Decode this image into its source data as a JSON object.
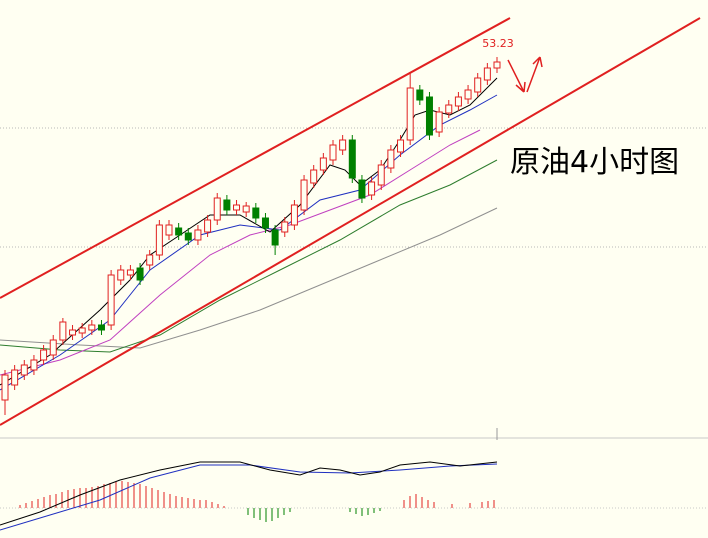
{
  "chart_data": {
    "type": "candlestick",
    "title": "原油4小时图",
    "annotation": "53.23",
    "up_color": "#e02020",
    "down_color": "#008000",
    "ylim": [
      49.45,
      53.85
    ],
    "open": [
      49.85,
      50.0,
      50.1,
      50.15,
      50.25,
      50.3,
      50.45,
      50.5,
      50.52,
      50.55,
      50.6,
      50.6,
      51.05,
      51.1,
      51.17,
      51.2,
      51.3,
      51.5,
      51.57,
      51.52,
      51.45,
      51.53,
      51.65,
      51.85,
      51.75,
      51.73,
      51.77,
      51.67,
      51.55,
      51.53,
      51.6,
      51.75,
      52.02,
      52.15,
      52.25,
      52.35,
      52.45,
      52.05,
      51.9,
      52.0,
      52.17,
      52.33,
      52.45,
      52.95,
      52.88,
      52.53,
      52.72,
      52.79,
      52.86,
      52.93,
      53.05,
      53.17
    ],
    "high": [
      50.15,
      50.2,
      50.25,
      50.3,
      50.4,
      50.5,
      50.67,
      50.6,
      50.62,
      50.65,
      50.65,
      51.15,
      51.2,
      51.2,
      51.22,
      51.35,
      51.65,
      51.65,
      51.62,
      51.57,
      51.6,
      51.7,
      51.92,
      51.9,
      51.85,
      51.83,
      51.82,
      51.72,
      51.6,
      51.68,
      51.85,
      52.1,
      52.2,
      52.32,
      52.45,
      52.5,
      52.5,
      52.1,
      52.08,
      52.25,
      52.4,
      52.5,
      53.12,
      53.0,
      52.93,
      52.78,
      52.85,
      52.93,
      53.0,
      53.12,
      53.22,
      53.28
    ],
    "low": [
      49.7,
      49.95,
      50.05,
      50.1,
      50.2,
      50.25,
      50.4,
      50.45,
      50.47,
      50.5,
      50.5,
      50.55,
      51.0,
      51.05,
      51.0,
      51.15,
      51.25,
      51.45,
      51.45,
      51.4,
      51.4,
      51.48,
      51.6,
      51.7,
      51.7,
      51.68,
      51.62,
      51.52,
      51.3,
      51.48,
      51.55,
      51.7,
      51.97,
      52.1,
      52.2,
      52.3,
      52.02,
      51.82,
      51.85,
      51.95,
      52.12,
      52.28,
      52.4,
      52.8,
      52.45,
      52.48,
      52.67,
      52.74,
      52.81,
      52.88,
      53.0,
      53.12
    ],
    "close": [
      50.1,
      50.15,
      50.2,
      50.25,
      50.35,
      50.45,
      50.63,
      50.55,
      50.57,
      50.6,
      50.55,
      51.1,
      51.15,
      51.15,
      51.05,
      51.3,
      51.6,
      51.6,
      51.5,
      51.45,
      51.55,
      51.65,
      51.87,
      51.75,
      51.8,
      51.79,
      51.67,
      51.57,
      51.4,
      51.63,
      51.8,
      52.05,
      52.15,
      52.27,
      52.4,
      52.45,
      52.07,
      51.87,
      52.03,
      52.2,
      52.35,
      52.45,
      52.97,
      52.85,
      52.5,
      52.73,
      52.8,
      52.88,
      52.95,
      53.07,
      53.17,
      53.23
    ]
  }
}
